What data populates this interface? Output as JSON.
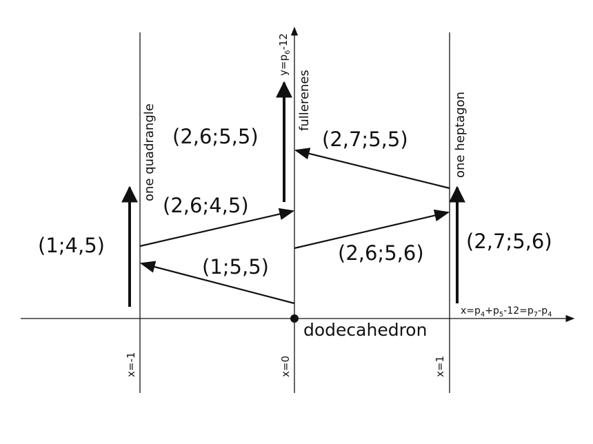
{
  "states": {
    "s145": "(1;4,5)",
    "s2645": "(2,6;4,5)",
    "s2655": "(2,6;5,5)",
    "s2755": "(2,7;5,5)",
    "s155": "(1;5,5)",
    "s2656": "(2,6;5,6)",
    "s2756": "(2,7;5,6)"
  },
  "columns": {
    "left": "one quadrangle",
    "middle": "fullerenes",
    "right": "one heptagon"
  },
  "origin": "dodecahedron",
  "x_marks": [
    "x=-1",
    "x=0",
    "x=1"
  ],
  "y_axis_label": [
    "y=p",
    "6",
    "-12"
  ],
  "x_axis_label": [
    "x=p",
    "4",
    "+p",
    "5",
    "-12=p",
    "7",
    "-p",
    "4"
  ]
}
